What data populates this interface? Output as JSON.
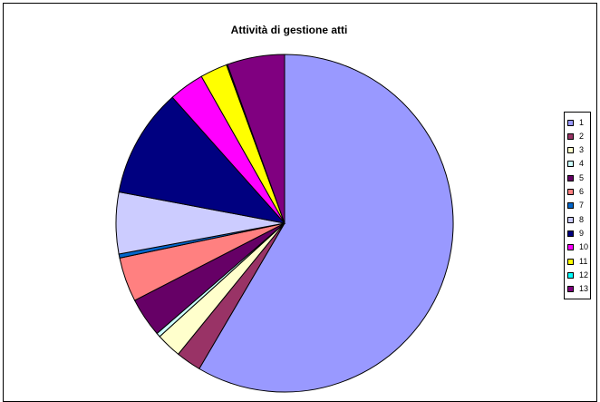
{
  "chart_data": {
    "type": "pie",
    "title": "Attività di gestione atti",
    "categories": [
      "1",
      "2",
      "3",
      "4",
      "5",
      "6",
      "7",
      "8",
      "9",
      "10",
      "11",
      "12",
      "13"
    ],
    "values": [
      60.5,
      2.5,
      2.5,
      0.4,
      3.9,
      4.4,
      0.4,
      6.1,
      10.8,
      3.5,
      2.7,
      0.1,
      5.7
    ],
    "colors": [
      "#9999FF",
      "#993366",
      "#FFFFCC",
      "#CCFFFF",
      "#660066",
      "#FF8080",
      "#0066CC",
      "#CCCCFF",
      "#000080",
      "#FF00FF",
      "#FFFF00",
      "#00FFFF",
      "#800080"
    ],
    "start_angle_deg": 0,
    "direction": "clockwise",
    "legend": "right"
  }
}
